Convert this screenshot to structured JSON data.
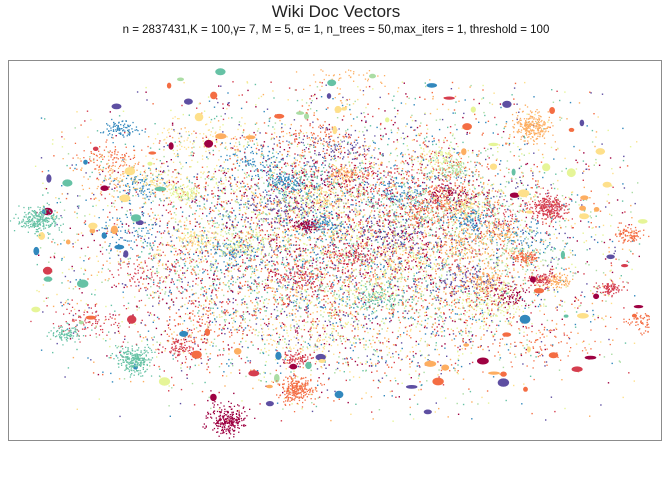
{
  "chart_data": {
    "type": "scatter",
    "title": "Wiki Doc Vectors",
    "subtitle": "n = 2837431,K = 100,γ= 7, M = 5, α= 1, n_trees = 50,max_iters = 1, threshold = 100",
    "xlabel": "",
    "ylabel": "",
    "axes_visible": false,
    "grid": false,
    "legend": "none",
    "palette": [
      "#9e0142",
      "#d53e4f",
      "#f46d43",
      "#fdae61",
      "#fee08b",
      "#e6f598",
      "#abdda4",
      "#66c2a5",
      "#3288bd",
      "#5e4fa2"
    ],
    "point_count": 2837431
  }
}
